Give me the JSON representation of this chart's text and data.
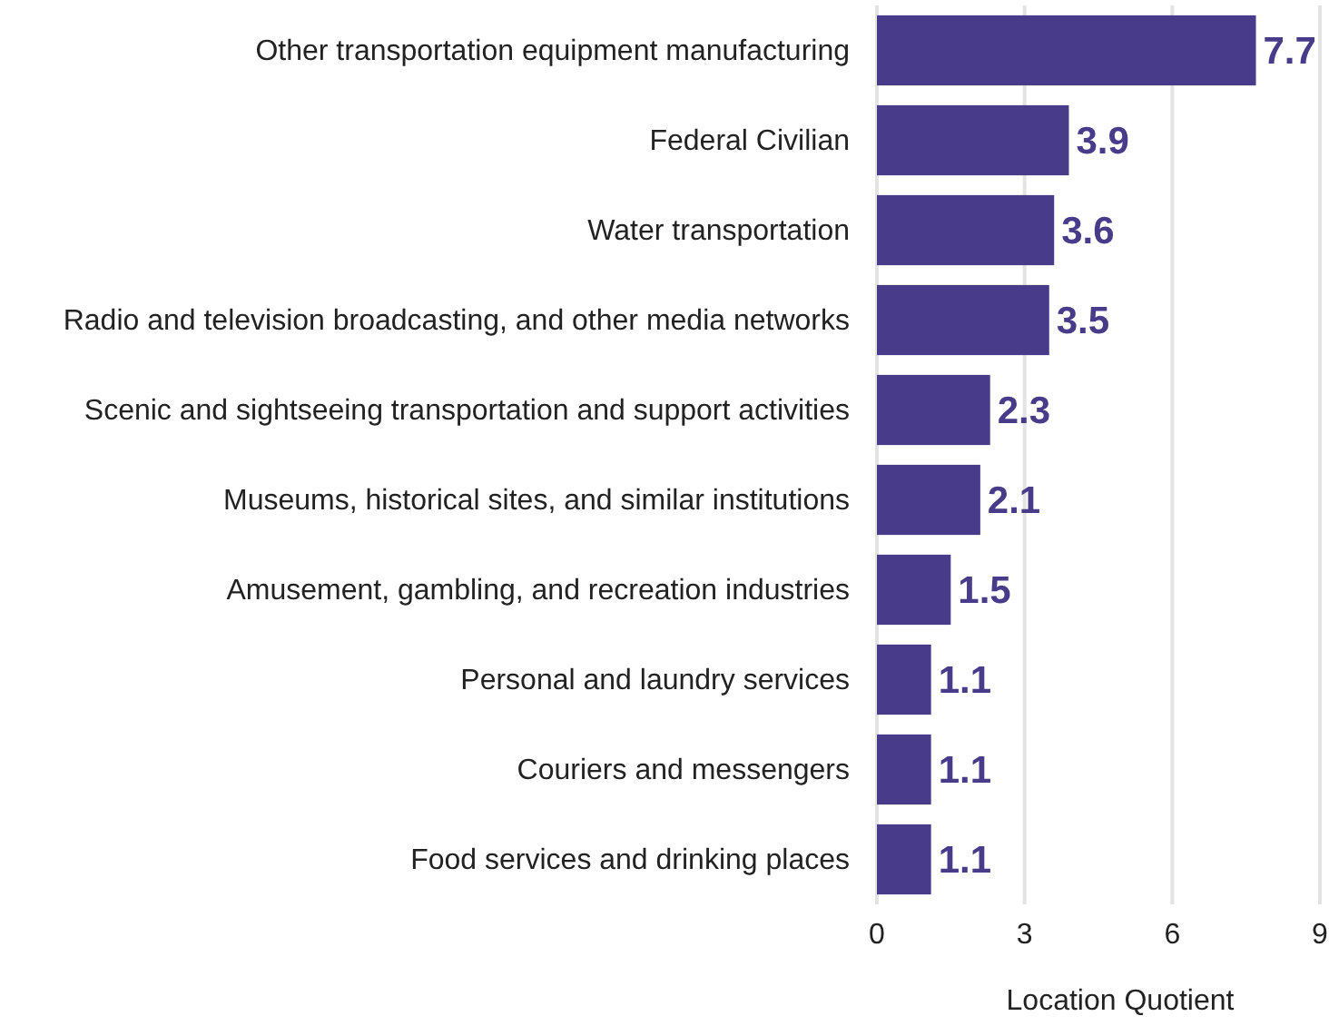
{
  "chart_data": {
    "type": "bar",
    "orientation": "horizontal",
    "xlabel": "Location Quotient",
    "categories": [
      "Other transportation equipment manufacturing",
      "Federal Civilian",
      "Water transportation",
      "Radio and television broadcasting, and other media networks",
      "Scenic and sightseeing transportation and support activities",
      "Museums, historical sites, and similar institutions",
      "Amusement, gambling, and recreation industries",
      "Personal and laundry services",
      "Couriers and messengers",
      "Food services and drinking places"
    ],
    "values": [
      7.7,
      3.9,
      3.6,
      3.5,
      2.3,
      2.1,
      1.5,
      1.1,
      1.1,
      1.1
    ],
    "color": "#473b8a",
    "xlim": [
      0,
      9
    ],
    "xticks": [
      0,
      3,
      6,
      9
    ],
    "grid": "x",
    "data_labels": true
  }
}
